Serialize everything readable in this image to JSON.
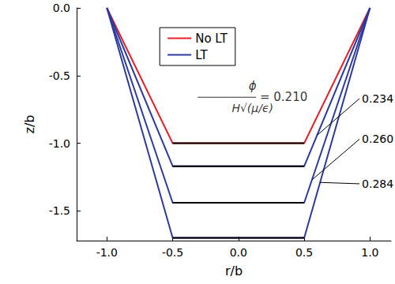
{
  "chart_data": {
    "type": "line",
    "x_label": "r/b",
    "y_label": "z/b",
    "xlim": [
      -1.23,
      1.16
    ],
    "ylim": [
      -1.72,
      0
    ],
    "xticks": [
      {
        "value": -1,
        "label": "-1.0"
      },
      {
        "value": -0.5,
        "label": "-0.5"
      },
      {
        "value": 0,
        "label": "0.0"
      },
      {
        "value": 0.5,
        "label": "0.5"
      },
      {
        "value": 1,
        "label": "1.0"
      }
    ],
    "yticks": [
      {
        "value": -1.5,
        "label": "-1.5"
      },
      {
        "value": -1,
        "label": "-1.0"
      },
      {
        "value": -0.5,
        "label": "-0.5"
      },
      {
        "value": 0,
        "label": "0.0"
      }
    ],
    "grid": false,
    "legend": "upper center",
    "series": [
      {
        "name": "No LT",
        "color": "#e8202a",
        "x": [
          -1,
          -0.5,
          0.5,
          1
        ],
        "values": [
          0,
          -1.0,
          -1.0,
          0
        ]
      },
      {
        "name": "LT",
        "color": "#2b3a9e",
        "x": [
          -1,
          -0.5,
          0.5,
          1
        ],
        "values": [
          0,
          -1.17,
          -1.17,
          0
        ]
      },
      {
        "name": "LT",
        "color": "#2b3a9e",
        "x": [
          -1,
          -0.5,
          0.5,
          1
        ],
        "values": [
          0,
          -1.44,
          -1.44,
          0
        ]
      },
      {
        "name": "LT",
        "color": "#2b3a9e",
        "x": [
          -1,
          -0.5,
          0.5,
          1
        ],
        "values": [
          0,
          -1.7,
          -1.7,
          0
        ]
      },
      {
        "color": "#000000",
        "x": [
          -0.5,
          0.5
        ],
        "values": [
          -1.0,
          -1.0
        ]
      },
      {
        "color": "#000000",
        "x": [
          -0.5,
          0.5
        ],
        "values": [
          -1.17,
          -1.17
        ]
      },
      {
        "color": "#000000",
        "x": [
          -0.5,
          0.5
        ],
        "values": [
          -1.44,
          -1.44
        ]
      },
      {
        "color": "#000000",
        "x": [
          -0.5,
          0.5
        ],
        "values": [
          -1.7,
          -1.7
        ]
      }
    ],
    "annotations": [
      {
        "numerator": "ϕ",
        "denominator": "H√(μ/ϵ)",
        "text": "= 0.210",
        "x": -0.31,
        "y": -0.66
      },
      {
        "text": "0.234",
        "x": 0.92,
        "y": -0.67,
        "point": [
          0.6,
          -0.94
        ]
      },
      {
        "text": "0.260",
        "x": 0.92,
        "y": -0.97,
        "point": [
          0.56,
          -1.27
        ]
      },
      {
        "text": "0.284",
        "x": 0.92,
        "y": -1.3,
        "point": [
          0.62,
          -1.29
        ]
      }
    ]
  }
}
